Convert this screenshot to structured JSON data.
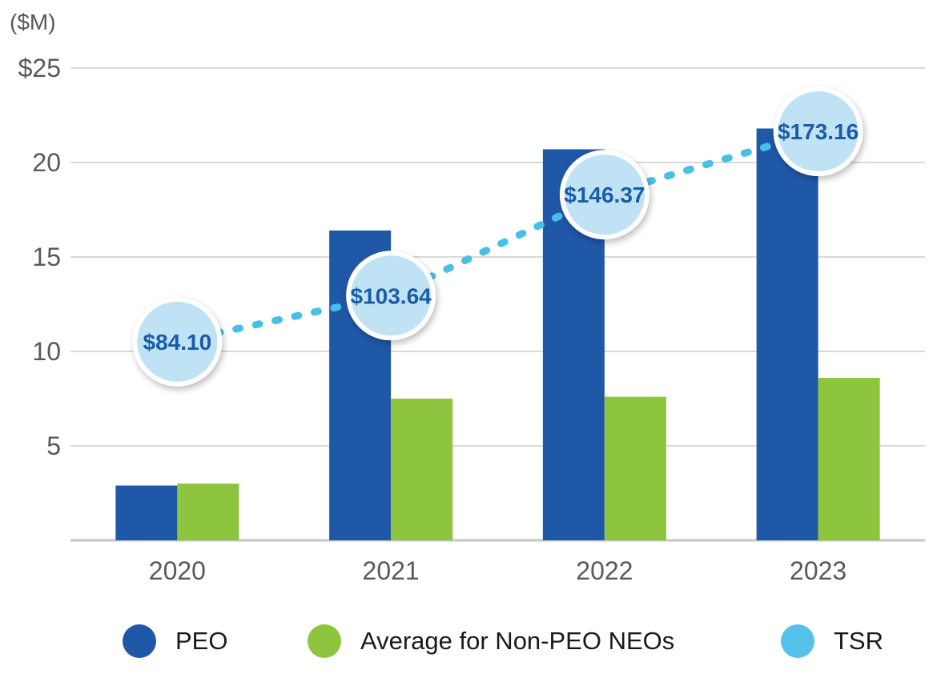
{
  "chart_data": {
    "type": "bar+line",
    "categories": [
      "2020",
      "2021",
      "2022",
      "2023"
    ],
    "series": [
      {
        "name": "PEO",
        "type": "bar",
        "values": [
          2.9,
          16.4,
          20.7,
          21.8
        ]
      },
      {
        "name": "Average for Non-PEO NEOs",
        "type": "bar",
        "values": [
          3.0,
          7.5,
          7.6,
          8.6
        ]
      },
      {
        "name": "TSR",
        "type": "line",
        "values": [
          84.1,
          103.64,
          146.37,
          173.16
        ],
        "point_labels": [
          "$84.10",
          "$103.64",
          "$146.37",
          "$173.16"
        ],
        "plot_divisor": 8
      }
    ],
    "ylabel": "($M)",
    "xlabel": "",
    "ylim": [
      0,
      25
    ],
    "yticks": [
      {
        "value": 25,
        "label": "$25"
      },
      {
        "value": 20,
        "label": "20"
      },
      {
        "value": 15,
        "label": "15"
      },
      {
        "value": 10,
        "label": "10"
      },
      {
        "value": 5,
        "label": "5"
      }
    ],
    "grid": true,
    "legend_position": "bottom"
  },
  "colors": {
    "peo": "#2058A8",
    "neo": "#8EC53E",
    "tsr": "#47C0E7",
    "tsr_legend": "#55C3E9",
    "bubble_fill": "#BFE3F5",
    "bubble_text": "#1B5BA7",
    "axis_text": "#595959",
    "gridline": "#D9D9D9",
    "axis_line": "#C6C6C6",
    "legend_text": "#1A1A1A"
  }
}
